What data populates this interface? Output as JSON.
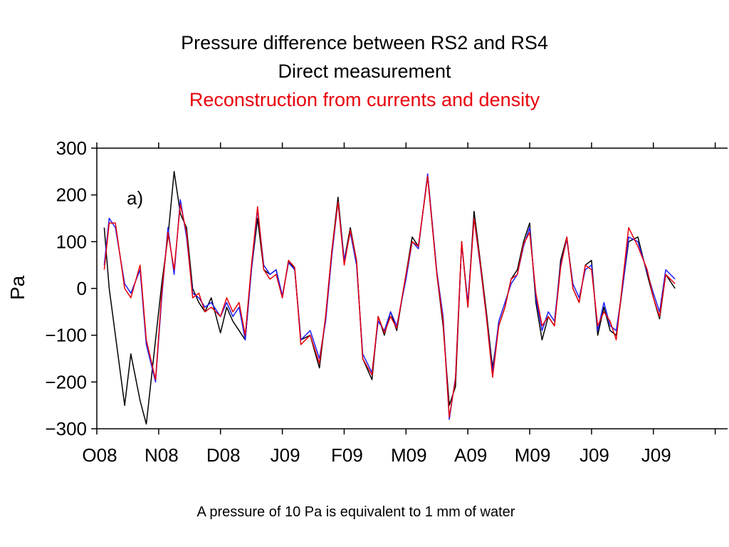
{
  "slide": {
    "title_line1": "Pressure difference between RS2 and RS4",
    "title_line2": "Direct measurement",
    "title_line3": "Reconstruction from currents and density",
    "footnote": "A pressure of 10 Pa is equivalent to 1 mm of water"
  },
  "colors": {
    "title_line3": "#e8000b",
    "measured": "#000000",
    "reconstruction_red": "#e8000b",
    "reconstruction_blue": "#1f1fff"
  },
  "chart_data": {
    "type": "line",
    "ylabel": "Pa",
    "panel_label": "a)",
    "xlabel": "",
    "ylim": [
      -300,
      300
    ],
    "yticks": [
      300,
      200,
      100,
      0,
      -100,
      -200,
      -300
    ],
    "ytick_labels": [
      "300",
      "200",
      "100",
      "0",
      "−100",
      "−200",
      "−300"
    ],
    "xlim": [
      0,
      10.2
    ],
    "xticks": [
      0,
      1,
      2,
      3,
      4,
      5,
      6,
      7,
      8,
      9,
      10
    ],
    "xtick_labels": [
      "O08",
      "N08",
      "D08",
      "J09",
      "F09",
      "M09",
      "A09",
      "M09",
      "J09",
      "J09"
    ],
    "xtick_label_positions": [
      0,
      1,
      2,
      3,
      4,
      5,
      6,
      7,
      8,
      9
    ],
    "grid": false,
    "series": [
      {
        "color_key": "measured",
        "x": [
          0.12,
          0.2,
          0.3,
          0.45,
          0.55,
          0.7,
          0.8,
          0.95,
          1.05,
          1.15,
          1.25,
          1.35,
          1.45,
          1.55,
          1.65,
          1.75,
          1.85,
          2.0,
          2.1,
          2.2,
          2.3,
          2.4,
          2.5,
          2.6,
          2.7,
          2.8,
          2.9,
          3.0,
          3.1,
          3.2,
          3.3,
          3.45,
          3.6,
          3.7,
          3.8,
          3.9,
          4.0,
          4.1,
          4.2,
          4.3,
          4.45,
          4.55,
          4.65,
          4.75,
          4.85,
          5.0,
          5.1,
          5.2,
          5.35,
          5.5,
          5.6,
          5.7,
          5.8,
          5.9,
          6.0,
          6.1,
          6.2,
          6.3,
          6.4,
          6.5,
          6.6,
          6.7,
          6.8,
          6.9,
          7.0,
          7.1,
          7.2,
          7.3,
          7.4,
          7.5,
          7.6,
          7.7,
          7.8,
          7.9,
          8.0,
          8.1,
          8.2,
          8.3,
          8.4,
          8.5,
          8.6,
          8.75,
          8.9,
          9.0,
          9.1,
          9.2,
          9.35
        ],
        "values": [
          130,
          0,
          -100,
          -250,
          -140,
          -240,
          -290,
          -110,
          10,
          110,
          250,
          160,
          130,
          0,
          -30,
          -50,
          -20,
          -95,
          -40,
          -70,
          -90,
          -110,
          40,
          150,
          40,
          30,
          40,
          -20,
          60,
          40,
          -110,
          -100,
          -170,
          -60,
          80,
          195,
          60,
          130,
          60,
          -150,
          -195,
          -60,
          -100,
          -50,
          -90,
          30,
          110,
          90,
          240,
          30,
          -80,
          -250,
          -210,
          100,
          -40,
          165,
          60,
          -50,
          -170,
          -80,
          -40,
          20,
          40,
          100,
          140,
          -30,
          -110,
          -60,
          -80,
          60,
          110,
          0,
          -30,
          50,
          60,
          -100,
          -40,
          -90,
          -100,
          0,
          100,
          110,
          30,
          -20,
          -65,
          30,
          0
        ]
      },
      {
        "color_key": "reconstruction_blue",
        "x": [
          0.12,
          0.2,
          0.3,
          0.45,
          0.55,
          0.7,
          0.8,
          0.95,
          1.05,
          1.15,
          1.25,
          1.35,
          1.45,
          1.55,
          1.65,
          1.75,
          1.85,
          2.0,
          2.1,
          2.2,
          2.3,
          2.4,
          2.5,
          2.6,
          2.7,
          2.8,
          2.9,
          3.0,
          3.1,
          3.2,
          3.3,
          3.45,
          3.6,
          3.7,
          3.8,
          3.9,
          4.0,
          4.1,
          4.2,
          4.3,
          4.45,
          4.55,
          4.65,
          4.75,
          4.85,
          5.0,
          5.1,
          5.2,
          5.35,
          5.5,
          5.6,
          5.7,
          5.8,
          5.9,
          6.0,
          6.1,
          6.2,
          6.3,
          6.4,
          6.5,
          6.6,
          6.7,
          6.8,
          6.9,
          7.0,
          7.1,
          7.2,
          7.3,
          7.4,
          7.5,
          7.6,
          7.7,
          7.8,
          7.9,
          8.0,
          8.1,
          8.2,
          8.3,
          8.4,
          8.5,
          8.6,
          8.75,
          8.9,
          9.0,
          9.1,
          9.2,
          9.35
        ],
        "values": [
          50,
          150,
          130,
          10,
          -10,
          40,
          -120,
          -200,
          -20,
          130,
          30,
          190,
          110,
          -10,
          -20,
          -40,
          -30,
          -60,
          -30,
          -60,
          -40,
          -110,
          40,
          170,
          50,
          30,
          40,
          -15,
          55,
          40,
          -110,
          -90,
          -150,
          -70,
          70,
          185,
          60,
          120,
          50,
          -140,
          -180,
          -70,
          -90,
          -50,
          -80,
          20,
          100,
          85,
          245,
          35,
          -60,
          -280,
          -190,
          95,
          -30,
          150,
          50,
          -60,
          -180,
          -70,
          -30,
          10,
          30,
          90,
          130,
          -20,
          -90,
          -50,
          -70,
          50,
          105,
          10,
          -20,
          40,
          50,
          -90,
          -30,
          -80,
          -90,
          0,
          110,
          100,
          35,
          -10,
          -50,
          40,
          20
        ]
      },
      {
        "color_key": "reconstruction_red",
        "x": [
          0.12,
          0.2,
          0.3,
          0.45,
          0.55,
          0.7,
          0.8,
          0.95,
          1.05,
          1.15,
          1.25,
          1.35,
          1.45,
          1.55,
          1.65,
          1.75,
          1.85,
          2.0,
          2.1,
          2.2,
          2.3,
          2.4,
          2.5,
          2.6,
          2.7,
          2.8,
          2.9,
          3.0,
          3.1,
          3.2,
          3.3,
          3.45,
          3.6,
          3.7,
          3.8,
          3.9,
          4.0,
          4.1,
          4.2,
          4.3,
          4.45,
          4.55,
          4.65,
          4.75,
          4.85,
          5.0,
          5.1,
          5.2,
          5.35,
          5.5,
          5.6,
          5.7,
          5.8,
          5.9,
          6.0,
          6.1,
          6.2,
          6.3,
          6.4,
          6.5,
          6.6,
          6.7,
          6.8,
          6.9,
          7.0,
          7.1,
          7.2,
          7.3,
          7.4,
          7.5,
          7.6,
          7.7,
          7.8,
          7.9,
          8.0,
          8.1,
          8.2,
          8.3,
          8.4,
          8.5,
          8.6,
          8.75,
          8.9,
          9.0,
          9.1,
          9.2,
          9.35
        ],
        "values": [
          40,
          140,
          140,
          0,
          -20,
          50,
          -110,
          -195,
          -10,
          120,
          40,
          180,
          120,
          -20,
          -10,
          -50,
          -40,
          -60,
          -20,
          -50,
          -30,
          -100,
          50,
          175,
          40,
          20,
          30,
          -20,
          60,
          45,
          -120,
          -100,
          -160,
          -60,
          80,
          185,
          50,
          125,
          60,
          -150,
          -185,
          -60,
          -95,
          -60,
          -85,
          30,
          100,
          90,
          240,
          30,
          -70,
          -275,
          -195,
          100,
          -40,
          150,
          55,
          -60,
          -190,
          -80,
          -40,
          20,
          30,
          95,
          120,
          -10,
          -80,
          -60,
          -80,
          45,
          110,
          0,
          -30,
          50,
          40,
          -80,
          -50,
          -70,
          -110,
          10,
          130,
          90,
          40,
          -20,
          -60,
          30,
          10
        ]
      }
    ]
  }
}
